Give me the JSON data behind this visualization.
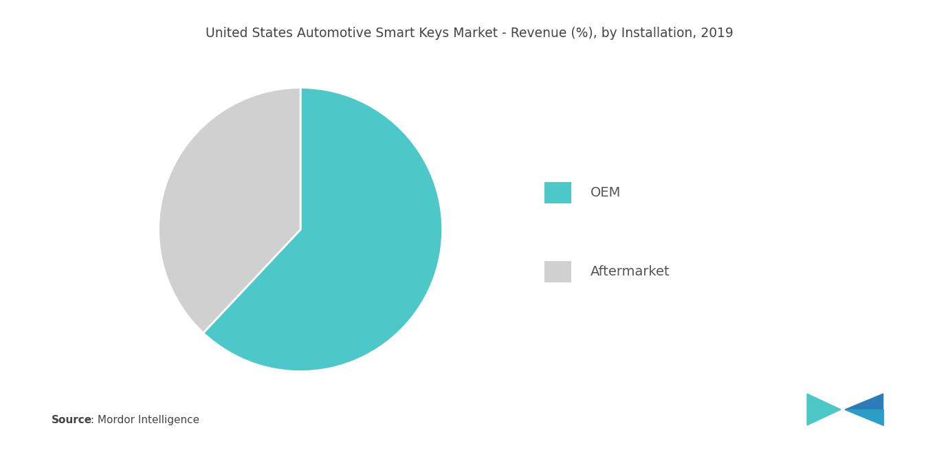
{
  "title": "United States Automotive Smart Keys Market - Revenue (%), by Installation, 2019",
  "labels": [
    "OEM",
    "Aftermarket"
  ],
  "values": [
    62,
    38
  ],
  "colors": [
    "#4DC8C8",
    "#D0D0D0"
  ],
  "legend_labels": [
    "OEM",
    "Aftermarket"
  ],
  "source_bold": "Source",
  "source_rest": " : Mordor Intelligence",
  "background_color": "#FFFFFF",
  "title_fontsize": 13.5,
  "legend_fontsize": 14,
  "source_fontsize": 11
}
